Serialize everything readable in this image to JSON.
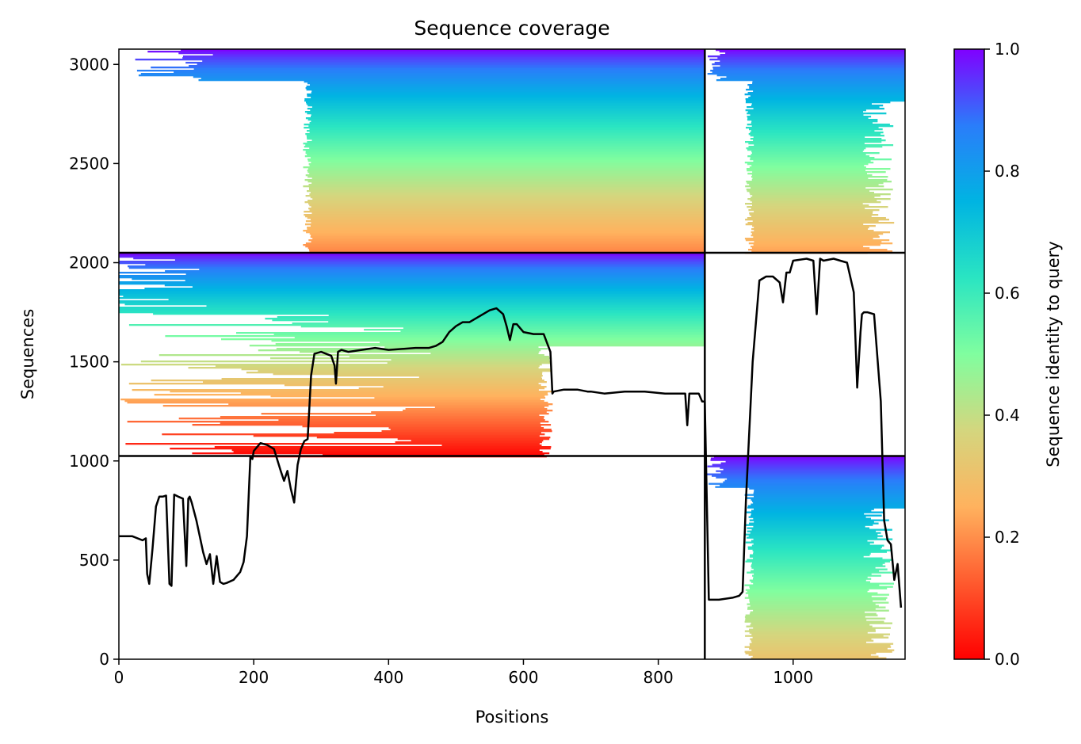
{
  "chart_data": {
    "type": "heatmap",
    "title": "Sequence coverage",
    "xlabel": "Positions",
    "ylabel": "Sequences",
    "xlim": [
      0,
      1166
    ],
    "ylim": [
      0,
      3077
    ],
    "x_ticks": [
      0,
      200,
      400,
      600,
      800,
      1000
    ],
    "y_ticks": [
      0,
      500,
      1000,
      1500,
      2000,
      2500,
      3000
    ],
    "colorbar": {
      "label": "Sequence identity to query",
      "range": [
        0.0,
        1.0
      ],
      "ticks": [
        "0.0",
        "0.2",
        "0.4",
        "0.6",
        "0.8",
        "1.0"
      ],
      "colormap": "rainbow",
      "stops": [
        "#ff0000",
        "#ff5a2e",
        "#ffb25e",
        "#d4d67e",
        "#80fe9f",
        "#2ae5c2",
        "#00b4e2",
        "#2a7dfa",
        "#8000ff"
      ]
    },
    "grid": false,
    "chain_boundary_x": 869,
    "group_boundaries_y": [
      1025,
      2050
    ],
    "blocks": [
      {
        "name": "top-left",
        "x": [
          0,
          869
        ],
        "y": [
          2050,
          3077
        ],
        "identity_top": 1.0,
        "identity_bottom": 0.18,
        "coverage_start": 280
      },
      {
        "name": "top-right",
        "x": [
          869,
          1166
        ],
        "y": [
          2050,
          3077
        ],
        "identity_top": 1.0,
        "identity_bottom": 0.22,
        "coverage_start": 935
      },
      {
        "name": "middle-left",
        "x": [
          0,
          869
        ],
        "y": [
          1025,
          2050
        ],
        "identity_top": 1.0,
        "identity_bottom": 0.0,
        "coverage_start": 0
      },
      {
        "name": "bottom-right",
        "x": [
          869,
          1166
        ],
        "y": [
          0,
          1025
        ],
        "identity_top": 1.0,
        "identity_bottom": 0.3,
        "coverage_start": 935
      }
    ],
    "coverage_line": {
      "color": "#000000",
      "x": [
        0,
        20,
        35,
        40,
        42,
        45,
        50,
        55,
        60,
        65,
        70,
        75,
        78,
        82,
        88,
        95,
        100,
        103,
        105,
        108,
        115,
        125,
        130,
        135,
        140,
        145,
        150,
        155,
        160,
        170,
        180,
        185,
        190,
        195,
        198,
        200,
        205,
        210,
        220,
        230,
        240,
        245,
        250,
        255,
        260,
        265,
        270,
        275,
        280,
        285,
        290,
        300,
        315,
        320,
        322,
        325,
        330,
        340,
        360,
        380,
        400,
        420,
        440,
        460,
        470,
        480,
        490,
        500,
        510,
        520,
        530,
        540,
        550,
        560,
        570,
        575,
        580,
        585,
        590,
        600,
        615,
        630,
        640,
        643,
        645,
        660,
        680,
        695,
        700,
        720,
        750,
        780,
        810,
        840,
        843,
        846,
        860,
        865,
        869,
        875,
        890,
        910,
        920,
        925,
        930,
        940,
        950,
        960,
        970,
        980,
        985,
        990,
        995,
        1000,
        1020,
        1030,
        1035,
        1040,
        1045,
        1060,
        1080,
        1090,
        1095,
        1100,
        1102,
        1105,
        1110,
        1120,
        1130,
        1135,
        1140,
        1145,
        1150,
        1155,
        1160,
        1166
      ],
      "y": [
        620,
        620,
        600,
        610,
        430,
        380,
        560,
        770,
        820,
        820,
        825,
        380,
        370,
        830,
        820,
        810,
        470,
        810,
        820,
        790,
        700,
        540,
        480,
        530,
        380,
        520,
        390,
        380,
        385,
        400,
        440,
        490,
        620,
        1020,
        1010,
        1050,
        1070,
        1090,
        1080,
        1060,
        950,
        900,
        950,
        860,
        790,
        980,
        1060,
        1100,
        1110,
        1430,
        1540,
        1550,
        1530,
        1480,
        1390,
        1550,
        1560,
        1550,
        1560,
        1570,
        1560,
        1565,
        1570,
        1570,
        1580,
        1600,
        1650,
        1680,
        1700,
        1700,
        1720,
        1740,
        1760,
        1770,
        1740,
        1680,
        1610,
        1690,
        1690,
        1650,
        1640,
        1640,
        1550,
        1340,
        1350,
        1360,
        1360,
        1350,
        1350,
        1340,
        1350,
        1350,
        1340,
        1340,
        1180,
        1340,
        1340,
        1300,
        1300,
        300,
        300,
        310,
        320,
        340,
        800,
        1500,
        1910,
        1930,
        1930,
        1900,
        1800,
        1950,
        1950,
        2010,
        2020,
        2010,
        1740,
        2020,
        2010,
        2020,
        2000,
        1850,
        1370,
        1650,
        1740,
        1750,
        1750,
        1740,
        1300,
        700,
        600,
        580,
        400,
        480,
        260
      ]
    }
  }
}
